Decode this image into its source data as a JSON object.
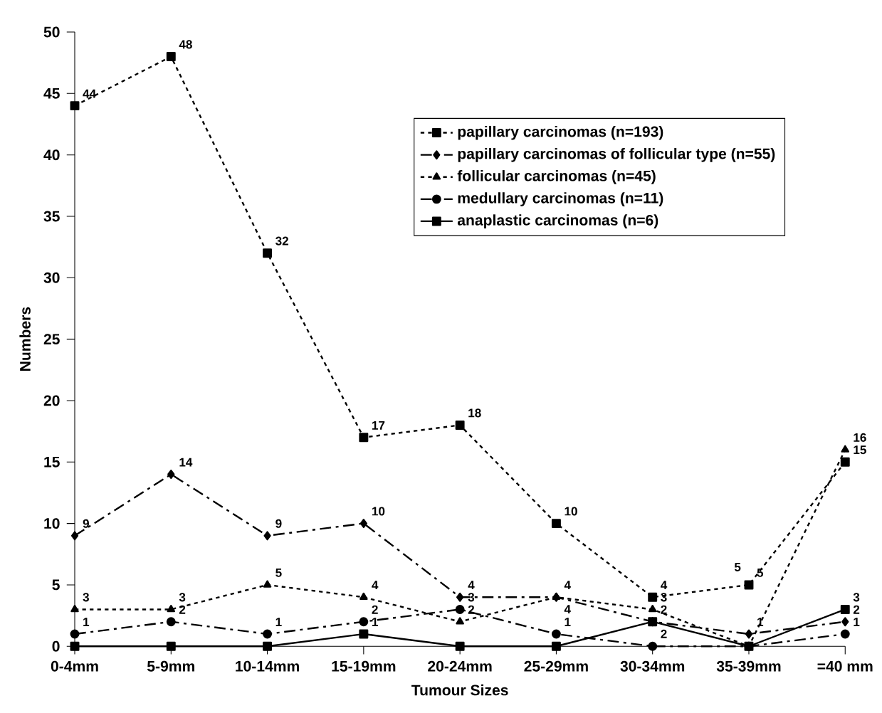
{
  "chart_data": {
    "type": "line",
    "xlabel": "Tumour Sizes",
    "ylabel": "Numbers",
    "categories": [
      "0-4mm",
      "5-9mm",
      "10-14mm",
      "15-19mm",
      "20-24mm",
      "25-29mm",
      "30-34mm",
      "35-39mm",
      "=40 mm"
    ],
    "series": [
      {
        "name": "papillary carcinomas (n=193)",
        "color": "#000000",
        "marker": "square",
        "line_style": "dotted",
        "values": [
          44,
          48,
          32,
          17,
          18,
          10,
          4,
          5,
          15
        ],
        "value_labels": [
          "44",
          "48",
          "32",
          "17",
          "18",
          "10",
          "4",
          "5",
          "15"
        ]
      },
      {
        "name": "papillary carcinomas of follicular type (n=55)",
        "color": "#000000",
        "marker": "diamond",
        "line_style": "dashed",
        "values": [
          9,
          14,
          9,
          10,
          4,
          4,
          2,
          1,
          2
        ],
        "value_labels": [
          "9",
          "14",
          "9",
          "10",
          "4",
          "4",
          "2",
          "1",
          "2"
        ]
      },
      {
        "name": "follicular carcinomas (n=45)",
        "color": "#000000",
        "marker": "triangle",
        "line_style": "dotted",
        "values": [
          3,
          3,
          5,
          4,
          2,
          4,
          3,
          0,
          16
        ],
        "value_labels": [
          "3",
          "3",
          "5",
          "4",
          "2",
          "4",
          "3",
          null,
          "16"
        ]
      },
      {
        "name": "medullary carcinomas (n=11)",
        "color": "#000000",
        "marker": "circle",
        "line_style": "dashed",
        "values": [
          1,
          2,
          1,
          2,
          3,
          1,
          0,
          0,
          1
        ],
        "value_labels": [
          "1",
          "2",
          "1",
          "2",
          "3",
          "1",
          null,
          null,
          "1"
        ]
      },
      {
        "name": "anaplastic carcinomas  (n=6)",
        "color": "#000000",
        "marker": "square",
        "line_style": "solid",
        "values": [
          0,
          0,
          0,
          1,
          0,
          0,
          2,
          0,
          3
        ],
        "value_labels": [
          null,
          null,
          null,
          "1",
          null,
          null,
          "2",
          null,
          "3"
        ]
      }
    ],
    "annotations": [
      {
        "text": "5",
        "x": "35-39mm",
        "y": 5
      }
    ],
    "ylim": [
      0,
      50
    ],
    "yticks": [
      0,
      5,
      10,
      15,
      20,
      25,
      30,
      35,
      40,
      45,
      50
    ],
    "legend": "top right",
    "grid": false
  }
}
